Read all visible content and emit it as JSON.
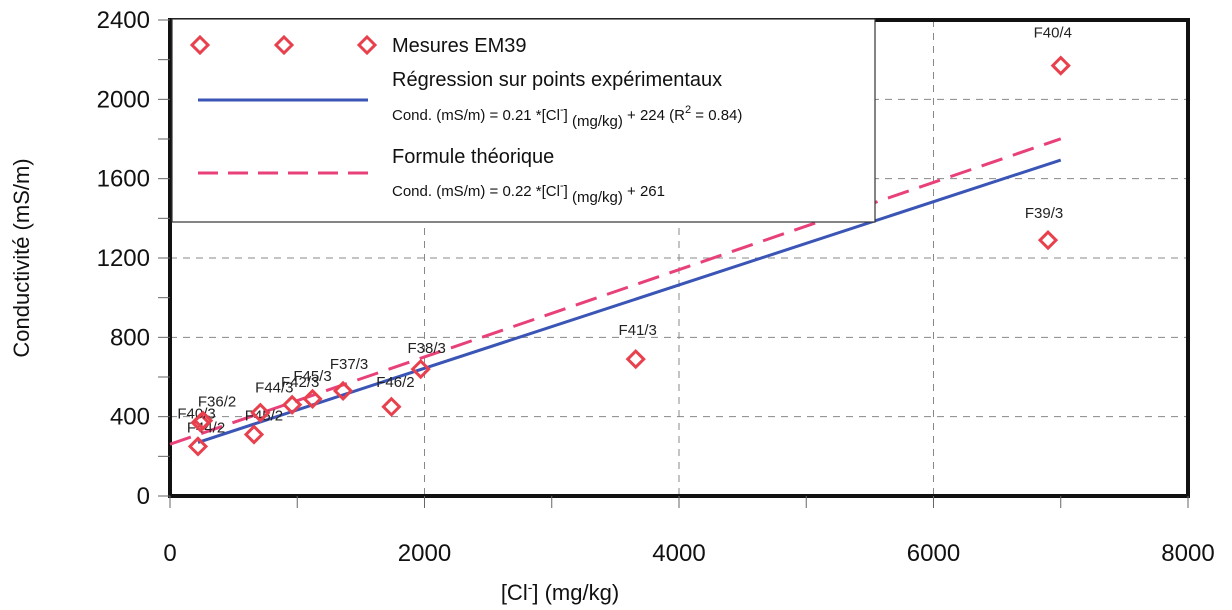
{
  "chart_data": {
    "type": "scatter",
    "xlabel": "[Cl-] (mg/kg)",
    "ylabel": "Conductivité (mS/m)",
    "xlim": [
      0,
      8000
    ],
    "ylim": [
      0,
      2400
    ],
    "x_ticks": [
      0,
      2000,
      4000,
      6000,
      8000
    ],
    "y_ticks": [
      0,
      400,
      800,
      1200,
      1600,
      2000,
      2400
    ],
    "x_tick_labels": [
      "0",
      "2000",
      "4000",
      "6000",
      "8000"
    ],
    "y_tick_labels": [
      "0",
      "400",
      "800",
      "1200",
      "1600",
      "2000",
      "2400"
    ],
    "grid": true,
    "legend_position": "top-left",
    "colors": {
      "markers": "#e8414d",
      "regression": "#3a55b5",
      "theory": "#e8417a",
      "grid": "#888888",
      "frame": "#111111"
    },
    "points": [
      {
        "label": "F44/2",
        "x": 220,
        "y": 250
      },
      {
        "label": "F40/3",
        "x": 240,
        "y": 370
      },
      {
        "label": "F36/2",
        "x": 260,
        "y": 380
      },
      {
        "label": "F45/2",
        "x": 660,
        "y": 310
      },
      {
        "label": "F44/3",
        "x": 710,
        "y": 420
      },
      {
        "label": "F42/3",
        "x": 960,
        "y": 460
      },
      {
        "label": "F45/3",
        "x": 1120,
        "y": 490
      },
      {
        "label": "F37/3",
        "x": 1360,
        "y": 530
      },
      {
        "label": "F46/2",
        "x": 1740,
        "y": 450
      },
      {
        "label": "F38/3",
        "x": 1970,
        "y": 640
      },
      {
        "label": "F41/3",
        "x": 3660,
        "y": 690
      },
      {
        "label": "F39/3",
        "x": 6900,
        "y": 1290
      },
      {
        "label": "F40/4",
        "x": 7000,
        "y": 2170
      }
    ],
    "series": [
      {
        "name": "Mesures EM39",
        "kind": "markers"
      },
      {
        "name": "Régression sur points expérimentaux",
        "kind": "line",
        "equation": "Cond. (mS/m) = 0.21 *[Cl-] (mg/kg) + 224   (R2 = 0.84)",
        "slope": 0.21,
        "intercept": 224,
        "x_range": [
          220,
          7000
        ]
      },
      {
        "name": "Formule théorique",
        "kind": "dashed-line",
        "equation": "Cond. (mS/m) = 0.22 *[Cl-] (mg/kg) + 261",
        "slope": 0.22,
        "intercept": 261,
        "x_range": [
          0,
          7000
        ]
      }
    ]
  },
  "legend": {
    "markers_label": "Mesures EM39",
    "regression_label": "Régression sur points expérimentaux",
    "regression_eq_pre": "Cond. (mS/m) = 0.21 *[Cl",
    "regression_eq_sup": "-",
    "regression_eq_mid": "] ",
    "regression_eq_sub": "(mg/kg)",
    "regression_eq_post": " + 224   (R",
    "regression_eq_sup2": "2",
    "regression_eq_end": " = 0.84)",
    "theory_label": "Formule théorique",
    "theory_eq_pre": "Cond. (mS/m) = 0.22 *[Cl",
    "theory_eq_sup": "-",
    "theory_eq_mid": "] ",
    "theory_eq_sub": "(mg/kg)",
    "theory_eq_post": " + 261"
  },
  "axis_titles": {
    "x_pre": "[Cl",
    "x_sup": "-",
    "x_post": "] (mg/kg)",
    "y": "Conductivité (mS/m)"
  }
}
